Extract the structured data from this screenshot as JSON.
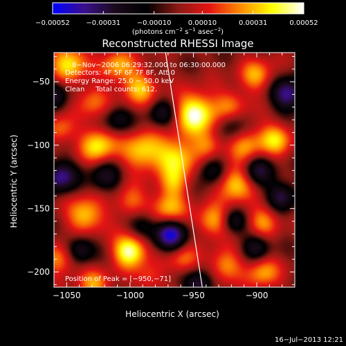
{
  "chart_data": {
    "type": "heatmap",
    "title": "Reconstructed RHESSI Image",
    "xlabel": "Heliocentric X (arcsec)",
    "ylabel": "Heliocentric Y (arcsec)",
    "xlim": [
      -1060,
      -870
    ],
    "ylim": [
      -212,
      -27
    ],
    "x_ticks": [
      -1050,
      -1000,
      -950,
      -900
    ],
    "y_ticks": [
      -50,
      -100,
      -150,
      -200
    ],
    "x_tick_labels": [
      "−1050",
      "−1000",
      "−950",
      "−900"
    ],
    "y_tick_labels": [
      "−50",
      "−100",
      "−150",
      "−200"
    ],
    "colorbar": {
      "min": -0.00052,
      "max": 0.00052,
      "ticks": [
        -0.00052,
        -0.00031,
        -0.0001,
        0.0001,
        0.00031,
        0.00052
      ],
      "tick_labels": [
        "−0.00052",
        "−0.00031",
        "−0.00010",
        "0.00010",
        "0.00031",
        "0.00052"
      ],
      "unit_parts": [
        "(photons cm",
        "−2",
        " s",
        "−1",
        " asec",
        "−2",
        ")"
      ],
      "colormap": [
        "#0000ff",
        "#3b0f8c",
        "#1a0a1a",
        "#000000",
        "#8c1a14",
        "#e61414",
        "#ff8c00",
        "#ffff00",
        "#ffffff"
      ]
    },
    "annotations": {
      "time_range": "8−Nov−2006 06:29:32.000 to 06:30:00.000",
      "detectors": "Detectors: 4F 5F 6F 7F 8F, Att 0",
      "energy": "Energy Range: 25.0 − 50.0 keV",
      "clean": "Clean     Total counts: 612.",
      "peak": "Position of Peak = [−950,−71]"
    },
    "peak": {
      "x": -950,
      "y": -71
    },
    "limb_line": [
      [
        -972,
        -27
      ],
      [
        -943,
        -212
      ]
    ],
    "sources": [
      {
        "x": -948,
        "y": -75,
        "v": 1.0,
        "w": 11
      },
      {
        "x": -963,
        "y": -110,
        "v": 0.75,
        "w": 11
      },
      {
        "x": -990,
        "y": -105,
        "v": 0.7,
        "w": 11
      },
      {
        "x": -1025,
        "y": -100,
        "v": 0.75,
        "w": 10
      },
      {
        "x": -1048,
        "y": -35,
        "v": 0.75,
        "w": 10
      },
      {
        "x": -1010,
        "y": -37,
        "v": 0.55,
        "w": 9
      },
      {
        "x": -993,
        "y": -55,
        "v": 0.6,
        "w": 10
      },
      {
        "x": -1030,
        "y": -65,
        "v": 0.45,
        "w": 9
      },
      {
        "x": -920,
        "y": -68,
        "v": 0.45,
        "w": 9
      },
      {
        "x": -900,
        "y": -45,
        "v": 0.55,
        "w": 9
      },
      {
        "x": -885,
        "y": -95,
        "v": 0.65,
        "w": 9
      },
      {
        "x": -908,
        "y": -100,
        "v": 0.55,
        "w": 10
      },
      {
        "x": -917,
        "y": -130,
        "v": 0.75,
        "w": 10
      },
      {
        "x": -895,
        "y": -160,
        "v": 0.5,
        "w": 9
      },
      {
        "x": -895,
        "y": -200,
        "v": 0.55,
        "w": 9
      },
      {
        "x": -925,
        "y": -195,
        "v": 0.55,
        "w": 9
      },
      {
        "x": -935,
        "y": -160,
        "v": 0.6,
        "w": 9
      },
      {
        "x": -970,
        "y": -150,
        "v": 0.65,
        "w": 10
      },
      {
        "x": -1000,
        "y": -183,
        "v": 1.0,
        "w": 9
      },
      {
        "x": -1035,
        "y": -155,
        "v": 0.7,
        "w": 10
      },
      {
        "x": -1055,
        "y": -190,
        "v": 0.55,
        "w": 9
      },
      {
        "x": -1000,
        "y": -145,
        "v": 0.45,
        "w": 9
      },
      {
        "x": -958,
        "y": -190,
        "v": 0.45,
        "w": 8
      },
      {
        "x": -965,
        "y": -130,
        "v": 0.4,
        "w": 8
      },
      {
        "x": -1055,
        "y": -88,
        "v": 0.45,
        "w": 8
      },
      {
        "x": -1028,
        "y": -210,
        "v": 0.5,
        "w": 9
      },
      {
        "x": -938,
        "y": -100,
        "v": 0.45,
        "w": 8
      },
      {
        "x": -985,
        "y": -205,
        "v": 0.35,
        "w": 8
      },
      {
        "x": -875,
        "y": -60,
        "v": -0.8,
        "w": 9
      },
      {
        "x": -900,
        "y": -120,
        "v": -0.6,
        "w": 9
      },
      {
        "x": -935,
        "y": -120,
        "v": -0.55,
        "w": 8
      },
      {
        "x": -968,
        "y": -170,
        "v": -0.9,
        "w": 9
      },
      {
        "x": -945,
        "y": -210,
        "v": -0.6,
        "w": 8
      },
      {
        "x": -1055,
        "y": -125,
        "v": -0.75,
        "w": 9
      },
      {
        "x": -1020,
        "y": -125,
        "v": -0.5,
        "w": 9
      },
      {
        "x": -1040,
        "y": -182,
        "v": -0.6,
        "w": 8
      },
      {
        "x": -1060,
        "y": -60,
        "v": -0.5,
        "w": 8
      },
      {
        "x": -880,
        "y": -140,
        "v": -0.6,
        "w": 8
      },
      {
        "x": -900,
        "y": -180,
        "v": -0.5,
        "w": 8
      },
      {
        "x": -920,
        "y": -85,
        "v": -0.4,
        "w": 8
      },
      {
        "x": -1010,
        "y": -80,
        "v": -0.45,
        "w": 8
      },
      {
        "x": -990,
        "y": -163,
        "v": -0.45,
        "w": 8
      },
      {
        "x": -918,
        "y": -160,
        "v": -0.45,
        "w": 7
      },
      {
        "x": -975,
        "y": -75,
        "v": -0.45,
        "w": 8
      }
    ]
  },
  "footer": {
    "timestamp": "16−Jul−2013 12:21"
  }
}
